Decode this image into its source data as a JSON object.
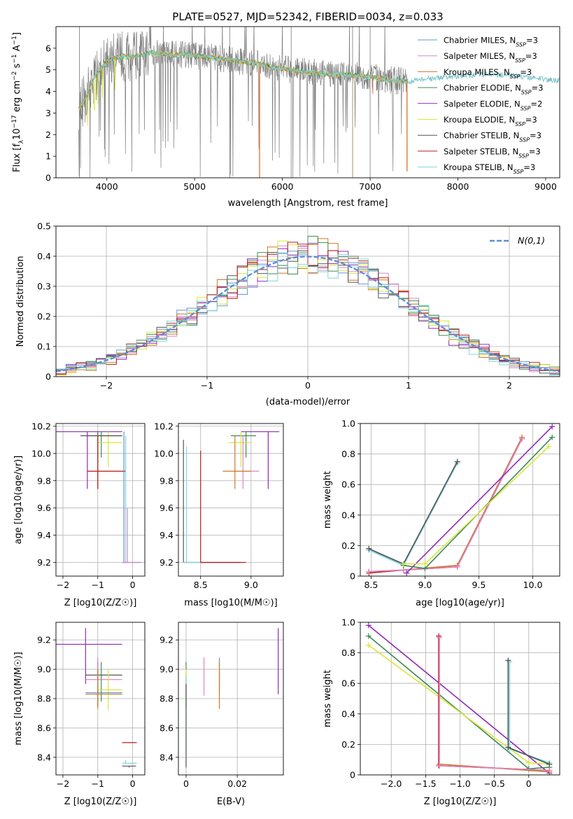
{
  "title": "PLATE=0527, MJD=52342, FIBERID=0034, z=0.033",
  "colors": [
    "#6a8fd6",
    "#e083c6",
    "#c87a24",
    "#3d8c55",
    "#8e2bb6",
    "#d9e63a",
    "#555555",
    "#b81f1f",
    "#7fd6da"
  ],
  "spec_colors": {
    "observed": "#808080",
    "orange_fit": "#e07b39",
    "cyan_fit": "#7fd6da"
  },
  "legend_labels": [
    "Chabrier MILES, N_SSP=3",
    "Salpeter MILES, N_SSP=3",
    "Kroupa MILES, N_SSP=3",
    "Chabrier ELODIE, N_SSP=3",
    "Salpeter ELODIE, N_SSP=2",
    "Kroupa ELODIE, N_SSP=3",
    "Chabrier STELIB, N_SSP=3",
    "Salpeter STELIB, N_SSP=3",
    "Kroupa STELIB, N_SSP=3"
  ],
  "chart_data": [
    {
      "type": "line",
      "name": "spectrum",
      "xlabel": "wavelength [Angstrom, rest frame]",
      "ylabel": "Flux [f_λ 10^-17 erg cm^-2 s^-1 A^-1]",
      "xlim": [
        3420,
        9160
      ],
      "ylim": [
        0,
        7
      ],
      "xticks": [
        4000,
        5000,
        6000,
        7000,
        8000,
        9000
      ],
      "yticks": [
        0,
        1,
        2,
        3,
        4,
        5,
        6
      ],
      "continuum": {
        "x": [
          3680,
          3750,
          3850,
          3950,
          4050,
          4150,
          4300,
          4500,
          4700,
          4900,
          5100,
          5300,
          5500,
          5700,
          5900,
          6100,
          6300,
          6500,
          6700,
          6900,
          7100,
          7300,
          7450,
          7700,
          8000,
          8300,
          8600,
          8900,
          9100
        ],
        "y": [
          3.2,
          3.6,
          4.6,
          5.2,
          5.5,
          5.6,
          5.6,
          5.8,
          5.7,
          5.7,
          5.6,
          5.5,
          5.4,
          5.3,
          5.1,
          5.0,
          4.9,
          4.8,
          4.8,
          4.7,
          4.6,
          4.5,
          4.45,
          4.6,
          4.7,
          4.8,
          4.75,
          4.6,
          4.5
        ]
      },
      "grey_range": [
        3680,
        7420
      ],
      "orange_range": [
        3680,
        7430
      ],
      "dips": [
        {
          "x": 5740,
          "to": 0.0
        },
        {
          "x": 7420,
          "to": 0.3
        }
      ]
    },
    {
      "type": "histogram",
      "name": "residuals",
      "xlabel": "(data-model)/error",
      "ylabel": "Normed distribution",
      "xlim": [
        -2.5,
        2.5
      ],
      "ylim": [
        0,
        0.5
      ],
      "xticks": [
        -2,
        -1,
        0,
        1,
        2
      ],
      "yticks": [
        0,
        0.1,
        0.2,
        0.3,
        0.4,
        0.5
      ],
      "legend": "N(0,1)",
      "normal_color": "#5b8fd8",
      "bin_width": 0.1
    },
    {
      "type": "scatter",
      "name": "age_vs_Z",
      "xlabel": "Z [log10(Z/Z☉)]",
      "ylabel": "age  [log10(age/yr)]",
      "xlim": [
        -2.2,
        0.35
      ],
      "ylim": [
        9.1,
        10.22
      ],
      "xticks": [
        -2,
        -1,
        0
      ],
      "yticks": [
        9.2,
        9.4,
        9.6,
        9.8,
        10.0,
        10.2
      ],
      "points": [
        {
          "c": 4,
          "x": -1.3,
          "xe": [
            -2.3,
            -0.3
          ],
          "y": 10.16,
          "ye": [
            9.74,
            10.16
          ]
        },
        {
          "c": 3,
          "x": -0.9,
          "xe": [
            -1.3,
            -0.3
          ],
          "y": 10.13,
          "ye": [
            9.97,
            10.16
          ]
        },
        {
          "c": 5,
          "x": -0.7,
          "xe": [
            -1.0,
            -0.3
          ],
          "y": 10.08,
          "ye": [
            9.9,
            10.16
          ]
        },
        {
          "c": 6,
          "x": -1.0,
          "xe": [
            -1.5,
            -0.3
          ],
          "y": 10.13,
          "ye": [
            9.93,
            10.16
          ]
        },
        {
          "c": 2,
          "x": -1.0,
          "xe": [
            -1.3,
            -0.2
          ],
          "y": 9.87,
          "ye": [
            9.74,
            10.13
          ]
        },
        {
          "c": 7,
          "x": -1.0,
          "xe": [
            -1.3,
            -0.2
          ],
          "y": 9.87,
          "ye": [
            9.74,
            10.13
          ]
        },
        {
          "c": 0,
          "x": -0.25,
          "xe": [
            -0.3,
            0.25
          ],
          "y": 9.2,
          "ye": [
            9.2,
            10.16
          ]
        },
        {
          "c": 8,
          "x": -0.2,
          "xe": [
            -0.3,
            0.2
          ],
          "y": 9.2,
          "ye": [
            9.2,
            10.13
          ]
        },
        {
          "c": 1,
          "x": -0.15,
          "xe": [
            -0.3,
            0.2
          ],
          "y": 9.2,
          "ye": [
            9.2,
            9.6
          ]
        }
      ]
    },
    {
      "type": "scatter",
      "name": "age_vs_mass",
      "xlabel": "mass [log10(M/M☉)]",
      "ylabel": "",
      "xlim": [
        8.28,
        9.32
      ],
      "ylim": [
        9.1,
        10.22
      ],
      "xticks": [
        8.5,
        9.0
      ],
      "yticks": [
        9.2,
        9.4,
        9.6,
        9.8,
        10.0,
        10.2
      ],
      "points": [
        {
          "c": 4,
          "x": 9.17,
          "xe": [
            8.9,
            9.28
          ],
          "y": 10.16,
          "ye": [
            9.74,
            10.16
          ]
        },
        {
          "c": 3,
          "x": 8.95,
          "xe": [
            8.8,
            9.05
          ],
          "y": 10.13,
          "ye": [
            9.97,
            10.16
          ]
        },
        {
          "c": 5,
          "x": 8.9,
          "xe": [
            8.78,
            9.0
          ],
          "y": 10.08,
          "ye": [
            9.9,
            10.16
          ]
        },
        {
          "c": 1,
          "x": 8.92,
          "xe": [
            8.82,
            9.08
          ],
          "y": 9.87,
          "ye": [
            9.74,
            10.13
          ]
        },
        {
          "c": 2,
          "x": 8.84,
          "xe": [
            8.72,
            9.0
          ],
          "y": 9.87,
          "ye": [
            9.74,
            10.13
          ]
        },
        {
          "c": 6,
          "x": 8.33,
          "xe": [
            8.33,
            8.9
          ],
          "y": 9.2,
          "ye": [
            9.2,
            10.1
          ]
        },
        {
          "c": 8,
          "x": 8.36,
          "xe": [
            8.33,
            8.88
          ],
          "y": 9.2,
          "ye": [
            9.2,
            10.05
          ]
        },
        {
          "c": 7,
          "x": 8.5,
          "xe": [
            8.5,
            8.95
          ],
          "y": 9.2,
          "ye": [
            9.2,
            10.02
          ]
        }
      ]
    },
    {
      "type": "line",
      "name": "mass_weight_vs_age",
      "xlabel": "age  [log10(age/yr)]",
      "ylabel": "mass weight",
      "xlim": [
        8.4,
        10.25
      ],
      "ylim": [
        0,
        1
      ],
      "xticks": [
        8.5,
        9.0,
        9.5,
        10.0
      ],
      "yticks": [
        0.0,
        0.2,
        0.4,
        0.6,
        0.8,
        1.0
      ],
      "series": [
        {
          "c": 0,
          "x": [
            8.48,
            8.8,
            9.3
          ],
          "y": [
            0.18,
            0.07,
            0.75
          ]
        },
        {
          "c": 8,
          "x": [
            8.48,
            8.8,
            9.3
          ],
          "y": [
            0.17,
            0.07,
            0.74
          ]
        },
        {
          "c": 6,
          "x": [
            8.48,
            8.8,
            9.3
          ],
          "y": [
            0.18,
            0.08,
            0.75
          ]
        },
        {
          "c": 2,
          "x": [
            8.48,
            8.8,
            9.3,
            9.9
          ],
          "y": [
            0.03,
            0.04,
            0.07,
            0.91
          ]
        },
        {
          "c": 7,
          "x": [
            8.48,
            8.8,
            9.3,
            9.9
          ],
          "y": [
            0.02,
            0.04,
            0.06,
            0.9
          ]
        },
        {
          "c": 1,
          "x": [
            8.48,
            8.8,
            9.3,
            9.9
          ],
          "y": [
            0.03,
            0.04,
            0.06,
            0.9
          ]
        },
        {
          "c": 4,
          "x": [
            8.83,
            10.18
          ],
          "y": [
            0.02,
            0.98
          ]
        },
        {
          "c": 3,
          "x": [
            8.8,
            9.0,
            10.18
          ],
          "y": [
            0.07,
            0.05,
            0.91
          ]
        },
        {
          "c": 5,
          "x": [
            8.8,
            9.0,
            10.15
          ],
          "y": [
            0.08,
            0.08,
            0.85
          ]
        }
      ]
    },
    {
      "type": "scatter",
      "name": "mass_vs_Z",
      "xlabel": "Z [log10(Z/Z☉)]",
      "ylabel": "mass [log10(M/M☉)]",
      "xlim": [
        -2.2,
        0.35
      ],
      "ylim": [
        8.28,
        9.32
      ],
      "xticks": [
        -2,
        -1,
        0
      ],
      "yticks": [
        8.4,
        8.6,
        8.8,
        9.0,
        9.2
      ],
      "points": [
        {
          "c": 4,
          "x": -1.35,
          "xe": [
            -2.3,
            -0.3
          ],
          "y": 9.17,
          "ye": [
            8.9,
            9.28
          ]
        },
        {
          "c": 3,
          "x": -0.9,
          "xe": [
            -1.35,
            -0.3
          ],
          "y": 8.96,
          "ye": [
            8.78,
            9.05
          ]
        },
        {
          "c": 6,
          "x": -1.0,
          "xe": [
            -1.35,
            -0.3
          ],
          "y": 8.96,
          "ye": [
            8.75,
            9.05
          ]
        },
        {
          "c": 1,
          "x": -1.0,
          "xe": [
            -1.35,
            -0.3
          ],
          "y": 8.93,
          "ye": [
            8.82,
            9.08
          ]
        },
        {
          "c": 5,
          "x": -0.7,
          "xe": [
            -1.0,
            -0.3
          ],
          "y": 8.86,
          "ye": [
            8.72,
            9.0
          ]
        },
        {
          "c": 0,
          "x": -1.0,
          "xe": [
            -1.35,
            -0.3
          ],
          "y": 8.84,
          "ye": [
            8.75,
            9.0
          ]
        },
        {
          "c": 2,
          "x": -1.0,
          "xe": [
            -1.35,
            -0.3
          ],
          "y": 8.83,
          "ye": [
            8.73,
            9.0
          ]
        },
        {
          "c": 7,
          "x": 0.0,
          "xe": [
            -0.3,
            0.12
          ],
          "y": 8.5,
          "ye": [
            8.5,
            8.5
          ]
        },
        {
          "c": 8,
          "x": -0.2,
          "xe": [
            -0.3,
            0.12
          ],
          "y": 8.36,
          "ye": [
            8.36,
            8.38
          ]
        },
        {
          "c": 6,
          "x": -0.1,
          "xe": [
            -0.3,
            0.1
          ],
          "y": 8.34,
          "ye": [
            8.33,
            8.34
          ]
        }
      ]
    },
    {
      "type": "scatter",
      "name": "mass_vs_EBV",
      "xlabel": "E(B-V)",
      "ylabel": "",
      "xlim": [
        -0.003,
        0.038
      ],
      "ylim": [
        8.28,
        9.32
      ],
      "xticks": [
        0.0,
        0.02
      ],
      "yticks": [
        8.4,
        8.6,
        8.8,
        9.0,
        9.2
      ],
      "points": [
        {
          "c": 3,
          "x": 0.0,
          "ye": [
            8.75,
            9.05
          ]
        },
        {
          "c": 5,
          "x": 0.0,
          "ye": [
            8.72,
            9.0
          ]
        },
        {
          "c": 8,
          "x": 0.0,
          "ye": [
            8.36,
            8.95
          ]
        },
        {
          "c": 6,
          "x": 0.0,
          "ye": [
            8.33,
            8.9
          ]
        },
        {
          "c": 1,
          "x": 0.007,
          "ye": [
            8.82,
            9.08
          ]
        },
        {
          "c": 0,
          "x": 0.013,
          "ye": [
            8.85,
            9.08
          ]
        },
        {
          "c": 2,
          "x": 0.013,
          "ye": [
            8.73,
            9.05
          ]
        },
        {
          "c": 4,
          "x": 0.036,
          "ye": [
            8.83,
            9.28
          ]
        }
      ]
    },
    {
      "type": "line",
      "name": "mass_weight_vs_Z",
      "xlabel": "Z [log10(Z/Z☉)]",
      "ylabel": "mass weight",
      "xlim": [
        -2.45,
        0.45
      ],
      "ylim": [
        0,
        1
      ],
      "xticks": [
        -2.0,
        -1.5,
        -1.0,
        -0.5,
        0.0
      ],
      "yticks": [
        0.0,
        0.2,
        0.4,
        0.6,
        0.8,
        1.0
      ],
      "series": [
        {
          "c": 4,
          "x": [
            -2.33,
            0.3
          ],
          "y": [
            0.98,
            0.01
          ]
        },
        {
          "c": 3,
          "x": [
            -2.33,
            0.0,
            0.3
          ],
          "y": [
            0.91,
            0.04,
            0.05
          ]
        },
        {
          "c": 5,
          "x": [
            -2.33,
            0.0,
            0.3
          ],
          "y": [
            0.85,
            0.08,
            0.07
          ]
        },
        {
          "c": 2,
          "x": [
            -1.3,
            -1.3,
            0.3
          ],
          "y": [
            0.9,
            0.07,
            0.02
          ]
        },
        {
          "c": 7,
          "x": [
            -1.31,
            -1.31,
            0.3
          ],
          "y": [
            0.91,
            0.06,
            0.03
          ]
        },
        {
          "c": 1,
          "x": [
            -1.3,
            -1.3,
            0.3
          ],
          "y": [
            0.9,
            0.06,
            0.03
          ]
        },
        {
          "c": 0,
          "x": [
            -0.3,
            -0.3,
            0.3
          ],
          "y": [
            0.75,
            0.18,
            0.07
          ]
        },
        {
          "c": 8,
          "x": [
            -0.28,
            -0.28,
            0.3
          ],
          "y": [
            0.74,
            0.17,
            0.08
          ]
        },
        {
          "c": 6,
          "x": [
            -0.3,
            -0.3,
            0.3
          ],
          "y": [
            0.75,
            0.18,
            0.07
          ]
        }
      ]
    }
  ]
}
